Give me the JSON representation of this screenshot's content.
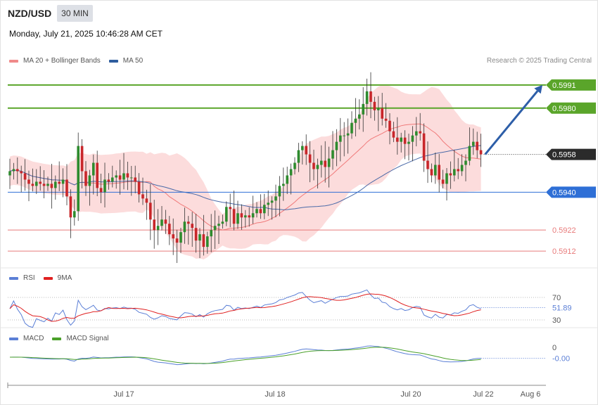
{
  "header": {
    "symbol": "NZD/USD",
    "timeframe": "30 MIN",
    "datetime": "Monday, July 21, 2025 10:46:28 AM CET",
    "credit": "Research © 2025 Trading Central"
  },
  "legend_main": [
    {
      "label": "MA 20 + Bollinger Bands",
      "color": "#f08a8a"
    },
    {
      "label": "MA 50",
      "color": "#2e5d9e"
    }
  ],
  "legend_rsi": [
    {
      "label": "RSI",
      "color": "#5b7fd6"
    },
    {
      "label": "9MA",
      "color": "#e02020"
    }
  ],
  "legend_macd": [
    {
      "label": "MACD",
      "color": "#5b7fd6"
    },
    {
      "label": "MACD Signal",
      "color": "#4aa02a"
    }
  ],
  "chart_data": [
    {
      "type": "candlestick",
      "title": "NZD/USD 30 MIN",
      "ylim": [
        0.5905,
        0.5998
      ],
      "x_ticks": [
        "Jul 17",
        "Jul 18",
        "Jul 20",
        "Jul 22",
        "Aug 6"
      ],
      "current_price": 0.5958,
      "resistance_levels": [
        0.5991,
        0.598
      ],
      "pivot_level": 0.594,
      "support_levels": [
        0.5922,
        0.5912
      ],
      "level_labels": [
        "0.5991",
        "0.5980",
        "0.5958",
        "0.5940",
        "0.5922",
        "0.5912"
      ],
      "projection": {
        "from": 0.5958,
        "to": 0.5991,
        "direction": "up"
      },
      "closes": [
        0.595,
        0.5951,
        0.595,
        0.5949,
        0.5946,
        0.5944,
        0.5943,
        0.5945,
        0.5944,
        0.5943,
        0.5944,
        0.5942,
        0.5945,
        0.5944,
        0.5946,
        0.5938,
        0.5928,
        0.5931,
        0.5962,
        0.595,
        0.5943,
        0.5948,
        0.5954,
        0.5942,
        0.594,
        0.5946,
        0.5945,
        0.5947,
        0.5948,
        0.5946,
        0.5949,
        0.5947,
        0.5947,
        0.5945,
        0.5939,
        0.5937,
        0.5935,
        0.5927,
        0.5922,
        0.5924,
        0.5927,
        0.5925,
        0.592,
        0.5918,
        0.5916,
        0.5921,
        0.5926,
        0.5925,
        0.5923,
        0.5917,
        0.592,
        0.5914,
        0.5919,
        0.5922,
        0.5924,
        0.5925,
        0.5926,
        0.5933,
        0.5932,
        0.5925,
        0.593,
        0.5928,
        0.5929,
        0.5928,
        0.593,
        0.5932,
        0.593,
        0.5934,
        0.5935,
        0.5936,
        0.5938,
        0.5943,
        0.5944,
        0.5948,
        0.5951,
        0.5954,
        0.596,
        0.5962,
        0.5958,
        0.5954,
        0.5951,
        0.5953,
        0.5955,
        0.5952,
        0.5956,
        0.596,
        0.5964,
        0.5967,
        0.5967,
        0.5968,
        0.5973,
        0.5975,
        0.5977,
        0.5982,
        0.5988,
        0.5983,
        0.5979,
        0.598,
        0.5975,
        0.5974,
        0.5969,
        0.5966,
        0.5964,
        0.5966,
        0.5963,
        0.5964,
        0.5967,
        0.5969,
        0.5968,
        0.5955,
        0.5951,
        0.5948,
        0.5953,
        0.5946,
        0.5944,
        0.5949,
        0.5948,
        0.5951,
        0.595,
        0.5953,
        0.5955,
        0.5962,
        0.5964,
        0.596,
        0.5958
      ],
      "indicators": [
        "MA 20 + Bollinger Bands",
        "MA 50"
      ]
    },
    {
      "type": "line",
      "title": "RSI",
      "levels": [
        70,
        30
      ],
      "current_value": 51.89,
      "current_label": "51.89",
      "series": [
        {
          "name": "RSI"
        },
        {
          "name": "9MA"
        }
      ]
    },
    {
      "type": "line",
      "title": "MACD",
      "levels": [
        0
      ],
      "level_label": "0",
      "current_value": -0.0,
      "current_label": "-0.00",
      "series": [
        {
          "name": "MACD"
        },
        {
          "name": "MACD Signal"
        }
      ]
    }
  ]
}
